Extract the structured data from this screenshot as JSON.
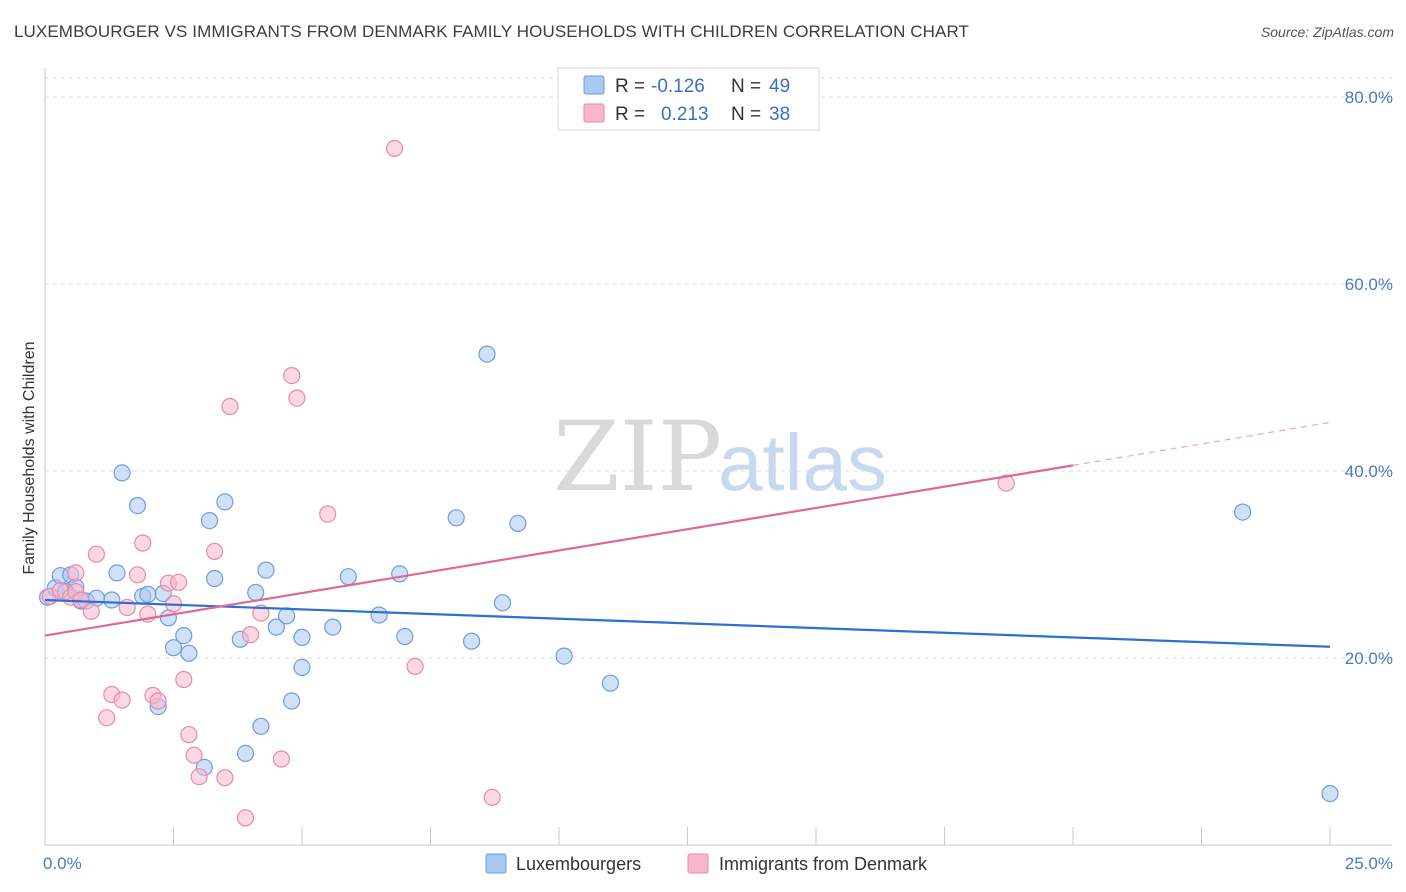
{
  "title": "LUXEMBOURGER VS IMMIGRANTS FROM DENMARK FAMILY HOUSEHOLDS WITH CHILDREN CORRELATION CHART",
  "source": "Source: ZipAtlas.com",
  "watermark": {
    "zip": "ZIP",
    "atlas": "atlas"
  },
  "colors": {
    "blue_fill": "#a9c7f0",
    "blue_stroke": "#6d9de0",
    "blue_line": "#2f6fd0",
    "pink_fill": "#f7b8cc",
    "pink_stroke": "#e98aa8",
    "pink_line": "#e0679a",
    "grid": "#dcdcdc",
    "tick_label": "#4a79c4"
  },
  "legend": {
    "rows": [
      {
        "r_label": "R =",
        "r_value": "-0.126",
        "n_label": "N =",
        "n_value": "49"
      },
      {
        "r_label": "R =",
        "r_value": "0.213",
        "n_label": "N =",
        "n_value": "38"
      }
    ]
  },
  "chart_data": {
    "type": "scatter",
    "ylabel": "Family Households with Children",
    "xlim": [
      0,
      25
    ],
    "ylim": [
      0,
      80
    ],
    "x_tick_labels": [
      "0.0%",
      "25.0%"
    ],
    "y_ticks": [
      20,
      40,
      60,
      80
    ],
    "y_tick_labels": [
      "20.0%",
      "40.0%",
      "60.0%",
      "80.0%"
    ],
    "grid": true,
    "legend_position": "top-center",
    "series": [
      {
        "name": "Luxembourgers",
        "color": "#a9c7f0",
        "trend": {
          "x": [
            0,
            25
          ],
          "y": [
            26.2,
            21.2
          ]
        },
        "points": [
          [
            0.05,
            26.5
          ],
          [
            0.2,
            27.5
          ],
          [
            0.3,
            28.8
          ],
          [
            0.5,
            28.9
          ],
          [
            0.6,
            27.6
          ],
          [
            0.7,
            26.1
          ],
          [
            0.8,
            26.1
          ],
          [
            1.3,
            26.2
          ],
          [
            1.4,
            29.1
          ],
          [
            1.5,
            39.8
          ],
          [
            1.8,
            36.3
          ],
          [
            1.9,
            26.6
          ],
          [
            2.0,
            26.8
          ],
          [
            2.2,
            14.8
          ],
          [
            2.4,
            24.3
          ],
          [
            2.5,
            21.1
          ],
          [
            2.7,
            22.4
          ],
          [
            2.8,
            20.5
          ],
          [
            3.1,
            8.3
          ],
          [
            3.2,
            34.7
          ],
          [
            3.3,
            28.5
          ],
          [
            3.5,
            36.7
          ],
          [
            3.8,
            22.0
          ],
          [
            3.9,
            9.8
          ],
          [
            4.1,
            27.0
          ],
          [
            4.2,
            12.7
          ],
          [
            4.3,
            29.4
          ],
          [
            4.5,
            23.3
          ],
          [
            4.7,
            24.5
          ],
          [
            4.8,
            15.4
          ],
          [
            5.0,
            19.0
          ],
          [
            5.0,
            22.2
          ],
          [
            5.6,
            23.3
          ],
          [
            5.9,
            28.7
          ],
          [
            6.5,
            24.6
          ],
          [
            6.9,
            29.0
          ],
          [
            7.0,
            22.3
          ],
          [
            8.0,
            35.0
          ],
          [
            8.3,
            21.8
          ],
          [
            8.6,
            52.5
          ],
          [
            8.9,
            25.9
          ],
          [
            9.2,
            34.4
          ],
          [
            10.1,
            20.2
          ],
          [
            11.0,
            17.3
          ],
          [
            23.3,
            35.6
          ],
          [
            25.0,
            5.5
          ],
          [
            0.4,
            27.1
          ],
          [
            1.0,
            26.4
          ],
          [
            2.3,
            26.9
          ]
        ]
      },
      {
        "name": "Immigrants from Denmark",
        "color": "#f7b8cc",
        "trend": {
          "x": [
            0,
            20
          ],
          "y": [
            22.4,
            40.6
          ]
        },
        "trend_dashed": {
          "x": [
            20,
            25
          ],
          "y": [
            40.6,
            45.2
          ]
        },
        "points": [
          [
            0.1,
            26.6
          ],
          [
            0.3,
            27.2
          ],
          [
            0.5,
            26.5
          ],
          [
            0.6,
            29.1
          ],
          [
            0.6,
            27.1
          ],
          [
            0.7,
            26.2
          ],
          [
            0.9,
            25.0
          ],
          [
            1.0,
            31.1
          ],
          [
            1.2,
            13.6
          ],
          [
            1.3,
            16.1
          ],
          [
            1.6,
            25.4
          ],
          [
            1.8,
            28.9
          ],
          [
            1.9,
            32.3
          ],
          [
            2.0,
            24.7
          ],
          [
            2.1,
            16.0
          ],
          [
            2.2,
            15.4
          ],
          [
            2.4,
            28.0
          ],
          [
            2.5,
            25.8
          ],
          [
            2.7,
            17.7
          ],
          [
            2.8,
            11.8
          ],
          [
            2.9,
            9.6
          ],
          [
            3.0,
            7.3
          ],
          [
            3.3,
            31.4
          ],
          [
            3.5,
            7.2
          ],
          [
            3.6,
            46.9
          ],
          [
            3.9,
            2.9
          ],
          [
            4.0,
            22.5
          ],
          [
            4.2,
            24.8
          ],
          [
            4.6,
            9.2
          ],
          [
            4.8,
            50.2
          ],
          [
            4.9,
            47.8
          ],
          [
            5.5,
            35.4
          ],
          [
            6.8,
            74.5
          ],
          [
            7.2,
            19.1
          ],
          [
            8.7,
            5.1
          ],
          [
            1.5,
            15.5
          ],
          [
            2.6,
            28.1
          ],
          [
            18.7,
            38.7
          ]
        ]
      }
    ]
  },
  "bottom_legend": [
    {
      "label": "Luxembourgers"
    },
    {
      "label": "Immigrants from Denmark"
    }
  ]
}
